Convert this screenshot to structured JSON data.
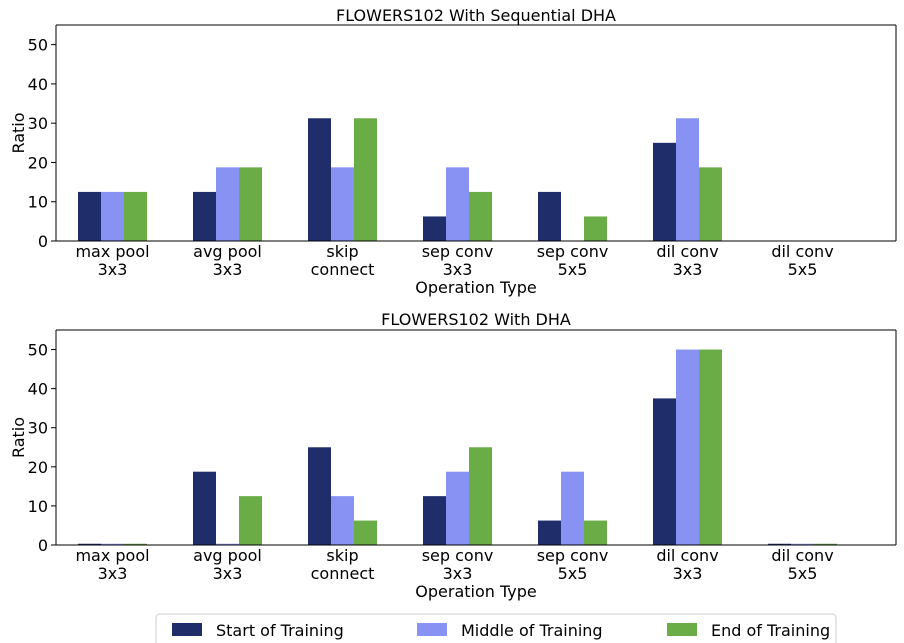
{
  "legend": {
    "position": "bottom-center",
    "items": [
      {
        "label": "Start of Training",
        "color": "#1f2d6b"
      },
      {
        "label": "Middle of Training",
        "color": "#8792f2"
      },
      {
        "label": "End of Training",
        "color": "#6aad46"
      }
    ]
  },
  "chart_data": [
    {
      "type": "bar",
      "title": "FLOWERS102 With Sequential DHA",
      "xlabel": "Operation Type",
      "ylabel": "Ratio",
      "ylim": [
        0,
        55
      ],
      "yticks": [
        0,
        10,
        20,
        30,
        40,
        50
      ],
      "categories": [
        [
          "max pool",
          "3x3"
        ],
        [
          "avg pool",
          "3x3"
        ],
        [
          "skip",
          "connect"
        ],
        [
          "sep conv",
          "3x3"
        ],
        [
          "sep conv",
          "5x5"
        ],
        [
          "dil conv",
          "3x3"
        ],
        [
          "dil conv",
          "5x5"
        ]
      ],
      "series": [
        {
          "name": "Start of Training",
          "values": [
            12.5,
            12.5,
            31.25,
            6.25,
            12.5,
            25,
            0
          ]
        },
        {
          "name": "Middle of Training",
          "values": [
            12.5,
            18.75,
            18.75,
            18.75,
            0,
            31.25,
            0
          ]
        },
        {
          "name": "End of Training",
          "values": [
            12.5,
            18.75,
            31.25,
            12.5,
            6.25,
            18.75,
            0
          ]
        }
      ]
    },
    {
      "type": "bar",
      "title": "FLOWERS102 With DHA",
      "xlabel": "Operation Type",
      "ylabel": "Ratio",
      "ylim": [
        0,
        55
      ],
      "yticks": [
        0,
        10,
        20,
        30,
        40,
        50
      ],
      "categories": [
        [
          "max pool",
          "3x3"
        ],
        [
          "avg pool",
          "3x3"
        ],
        [
          "skip",
          "connect"
        ],
        [
          "sep conv",
          "3x3"
        ],
        [
          "sep conv",
          "5x5"
        ],
        [
          "dil conv",
          "3x3"
        ],
        [
          "dil conv",
          "5x5"
        ]
      ],
      "series": [
        {
          "name": "Start of Training",
          "values": [
            0,
            18.75,
            25,
            12.5,
            6.25,
            37.5,
            0
          ]
        },
        {
          "name": "Middle of Training",
          "values": [
            0,
            0,
            12.5,
            18.75,
            18.75,
            50,
            0
          ]
        },
        {
          "name": "End of Training",
          "values": [
            0,
            12.5,
            6.25,
            25,
            6.25,
            50,
            0
          ]
        }
      ]
    }
  ]
}
